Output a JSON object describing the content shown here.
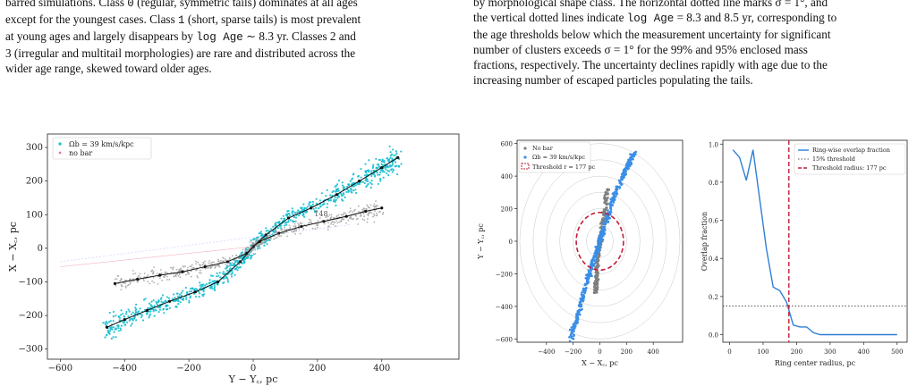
{
  "left_paragraph": {
    "line1_pre": "barred simulations. Class ",
    "line1_code": "0",
    "line1_post": " (regular, symmetric tails) dominates at all ages",
    "line2_pre": "except for the youngest cases. Class ",
    "line2_code": "1",
    "line2_post": " (short, sparse tails) is most prevalent",
    "line3_pre": "at young ages and largely disappears by ",
    "line3_code": "log Age",
    "line3_post": " ∼ 8.3 yr. Classes 2 and",
    "line4": "3 (irregular and multitail morphologies) are rare and distributed across the",
    "line5": "wider age range, skewed toward older ages."
  },
  "right_paragraph": {
    "line1": "by morphological shape class. The horizontal dotted line marks σ = 1°, and",
    "line2_pre": "the vertical dotted lines indicate ",
    "line2_code": "log Age",
    "line2_post": " = 8.3 and 8.5 yr, corresponding to",
    "line3": "the age thresholds below which the measurement uncertainty for significant",
    "line4": "number of clusters exceeds σ = 1° for the 99% and 95% enclosed mass",
    "line5": "fractions, respectively. The uncertainty declines rapidly with age due to the",
    "line6": "increasing number of escaped particles populating the tails."
  },
  "chart_data": [
    {
      "type": "scatter",
      "xlabel": "Y − Y꜀, pc",
      "ylabel": "X − X꜀, pc",
      "xlim": [
        -640,
        640
      ],
      "ylim": [
        -330,
        340
      ],
      "xticks": [
        "−600",
        "−400",
        "−200",
        "0",
        "200",
        "400"
      ],
      "xtick_values": [
        -600,
        -400,
        -200,
        0,
        200,
        400
      ],
      "yticks": [
        "300",
        "200",
        "100",
        "0",
        "−100",
        "−200",
        "−300"
      ],
      "ytick_values": [
        300,
        200,
        100,
        0,
        -100,
        -200,
        -300
      ],
      "legend": [
        "Ωb = 39 km/s/kpc",
        "no bar"
      ],
      "legend_position": "top-left",
      "series": [
        {
          "name": "Ωb = 39 km/s/kpc",
          "color": "#17becf",
          "track_x": [
            -455,
            -400,
            -330,
            -260,
            -180,
            -110,
            -40,
            0,
            40,
            110,
            180,
            260,
            330,
            400,
            450
          ],
          "track_y": [
            -235,
            -212,
            -185,
            -158,
            -130,
            -100,
            -40,
            5,
            40,
            90,
            120,
            160,
            200,
            240,
            270
          ]
        },
        {
          "name": "no bar",
          "color": "#a6a6a6",
          "track_x": [
            -430,
            -360,
            -290,
            -220,
            -150,
            -80,
            -20,
            0,
            20,
            80,
            150,
            220,
            290,
            350,
            400
          ],
          "track_y": [
            -105,
            -92,
            -80,
            -70,
            -55,
            -40,
            -15,
            5,
            20,
            45,
            65,
            80,
            95,
            110,
            120
          ]
        }
      ],
      "annotation": "148"
    },
    {
      "type": "scatter",
      "xlabel": "X − X꜀, pc",
      "ylabel": "Y − Y꜀, pc",
      "xlim": [
        -620,
        620
      ],
      "ylim": [
        -620,
        620
      ],
      "xticks": [
        "−400",
        "−200",
        "0",
        "200",
        "400"
      ],
      "xtick_values": [
        -400,
        -200,
        0,
        200,
        400
      ],
      "yticks": [
        "600",
        "400",
        "200",
        "0",
        "−200",
        "−400",
        "−600"
      ],
      "ytick_values": [
        600,
        400,
        200,
        0,
        -200,
        -400,
        -600
      ],
      "legend": [
        "No bar",
        "Ωb = 39 km/s/kpc",
        "Threshold r = 177 pc"
      ],
      "legend_position": "top-left",
      "threshold_radius": 177,
      "ring_radii": [
        100,
        200,
        300,
        400,
        500,
        600
      ],
      "series": [
        {
          "name": "No bar",
          "color": "#7f7f7f",
          "track_x": [
            -30,
            -25,
            -20,
            -10,
            0,
            15,
            30,
            45,
            55
          ],
          "track_y": [
            -320,
            -250,
            -150,
            -60,
            0,
            70,
            150,
            250,
            320
          ]
        },
        {
          "name": "Ωb = 39 km/s/kpc",
          "color": "#3a8ee6",
          "track_x": [
            -220,
            -180,
            -140,
            -100,
            -60,
            -20,
            0,
            30,
            70,
            120,
            170,
            220,
            260
          ],
          "track_y": [
            -600,
            -500,
            -380,
            -260,
            -150,
            -60,
            0,
            80,
            180,
            300,
            400,
            480,
            550
          ]
        }
      ]
    },
    {
      "type": "line",
      "xlabel": "Ring center radius, pc",
      "ylabel": "Overlap fraction",
      "xlim": [
        -20,
        530
      ],
      "ylim": [
        -0.04,
        1.02
      ],
      "xticks": [
        "0",
        "100",
        "200",
        "300",
        "400",
        "500"
      ],
      "xtick_values": [
        0,
        100,
        200,
        300,
        400,
        500
      ],
      "yticks": [
        "1.0",
        "0.8",
        "0.6",
        "0.4",
        "0.2",
        "0.0"
      ],
      "ytick_values": [
        1.0,
        0.8,
        0.6,
        0.4,
        0.2,
        0.0
      ],
      "legend": [
        "Ring-wise overlap fraction",
        "15% threshold",
        "Threshold radius: 177 pc"
      ],
      "legend_position": "top-right",
      "series": [
        {
          "name": "Ring-wise overlap fraction",
          "color": "#2f7fd6",
          "x": [
            10,
            30,
            50,
            70,
            90,
            110,
            130,
            150,
            170,
            190,
            210,
            230,
            250,
            270,
            290,
            320,
            360,
            400,
            450,
            500
          ],
          "y": [
            0.97,
            0.93,
            0.81,
            0.97,
            0.71,
            0.45,
            0.25,
            0.23,
            0.17,
            0.05,
            0.04,
            0.04,
            0.01,
            0.0,
            0.0,
            0.0,
            0.0,
            0.0,
            0.0,
            0.0
          ]
        }
      ],
      "hline": 0.15,
      "vline": 177
    }
  ]
}
